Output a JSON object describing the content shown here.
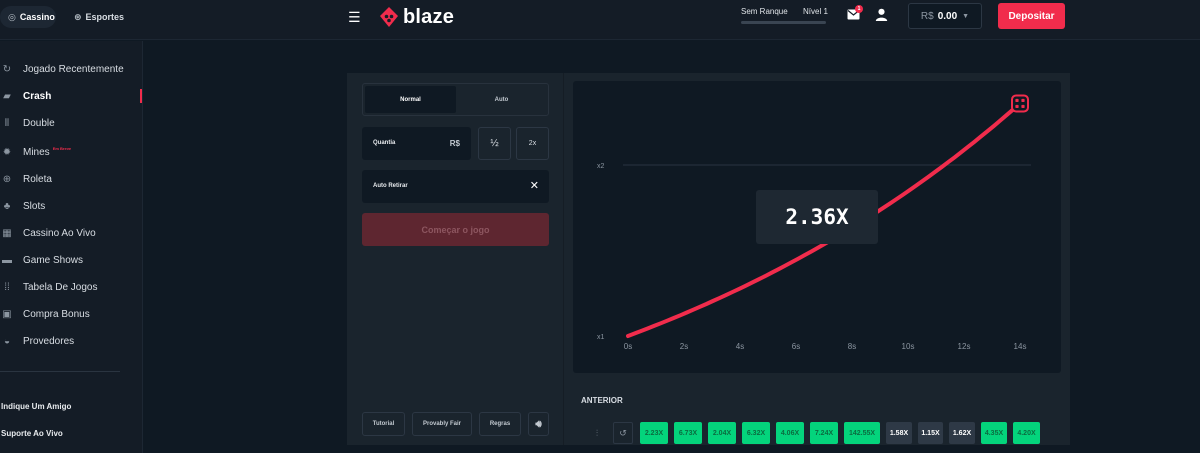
{
  "header": {
    "tabs": [
      {
        "label": "Cassino",
        "icon": "casino-icon"
      },
      {
        "label": "Esportes",
        "icon": "sports-icon"
      }
    ],
    "logo_text": "blaze",
    "rank": "Sem Ranque",
    "level": "Nível 1",
    "notifications_count": "1",
    "balance": {
      "currency": "R$",
      "value": "0.00"
    },
    "deposit_label": "Depositar"
  },
  "sidebar": {
    "items": [
      {
        "label": "Jogado Recentemente",
        "icon": "history-icon"
      },
      {
        "label": "Crash",
        "icon": "crash-icon",
        "active": true
      },
      {
        "label": "Double",
        "icon": "double-icon"
      },
      {
        "label": "Mines",
        "icon": "mines-icon",
        "badge": "Em Breve"
      },
      {
        "label": "Roleta",
        "icon": "roulette-icon"
      },
      {
        "label": "Slots",
        "icon": "slots-icon"
      },
      {
        "label": "Cassino Ao Vivo",
        "icon": "live-casino-icon"
      },
      {
        "label": "Game Shows",
        "icon": "game-shows-icon"
      },
      {
        "label": "Tabela De Jogos",
        "icon": "table-games-icon"
      },
      {
        "label": "Compra Bonus",
        "icon": "bonus-buy-icon"
      },
      {
        "label": "Provedores",
        "icon": "providers-icon"
      }
    ],
    "links": [
      "Indique Um Amigo",
      "Suporte Ao Vivo"
    ]
  },
  "controls": {
    "modes": [
      "Normal",
      "Auto"
    ],
    "active_mode": "Normal",
    "amount_label": "Quantia",
    "amount_currency": "R$",
    "half_label": "½",
    "double_label": "2x",
    "auto_cashout_label": "Auto Retirar",
    "start_label": "Começar o jogo",
    "footer": {
      "tutorial": "Tutorial",
      "provably_fair": "Provably Fair",
      "rules": "Regras"
    }
  },
  "game": {
    "multiplier": "2.36X"
  },
  "chart_data": {
    "type": "line",
    "x_ticks": [
      "0s",
      "2s",
      "4s",
      "6s",
      "8s",
      "10s",
      "12s",
      "14s"
    ],
    "y_ticks": [
      "x1",
      "x2"
    ],
    "xlim": [
      0,
      14
    ],
    "ylim": [
      1,
      2
    ],
    "current_multiplier": 2.36,
    "line_color": "#f12c4c"
  },
  "history": {
    "title": "ANTERIOR",
    "results": [
      {
        "value": "2.23X",
        "win": true
      },
      {
        "value": "6.73X",
        "win": true
      },
      {
        "value": "2.04X",
        "win": true
      },
      {
        "value": "6.32X",
        "win": true
      },
      {
        "value": "4.06X",
        "win": true
      },
      {
        "value": "7.24X",
        "win": true
      },
      {
        "value": "142.55X",
        "win": true
      },
      {
        "value": "1.58X",
        "win": false
      },
      {
        "value": "1.15X",
        "win": false
      },
      {
        "value": "1.62X",
        "win": false
      },
      {
        "value": "4.35X",
        "win": true
      },
      {
        "value": "4.20X",
        "win": true
      }
    ]
  },
  "colors": {
    "accent": "#f12c4c",
    "win": "#04d47c",
    "background": "#0f1923"
  }
}
